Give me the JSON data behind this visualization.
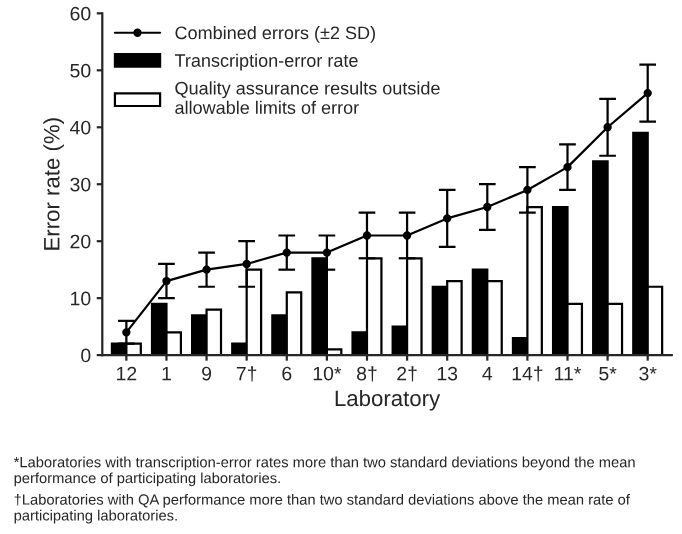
{
  "chart_data": {
    "type": "bar",
    "xlabel": "Laboratory",
    "ylabel": "Error rate (%)",
    "categories": [
      "12",
      "1",
      "9",
      "7†",
      "6",
      "10*",
      "8†",
      "2†",
      "13",
      "4",
      "14†",
      "11*",
      "5*",
      "3*"
    ],
    "series": [
      {
        "name": "Combined errors (±2 SD)",
        "type": "line",
        "color": "#000000",
        "marker": "circle",
        "values": [
          4,
          13,
          15,
          16,
          18,
          18,
          21,
          21,
          24,
          26,
          29,
          33,
          40,
          46
        ],
        "errors": [
          2,
          3,
          3,
          4,
          3,
          3,
          4,
          4,
          5,
          4,
          4,
          4,
          5,
          5
        ]
      },
      {
        "name": "Transcription-error rate",
        "color": "#000000",
        "values": [
          2,
          9,
          7,
          2,
          7,
          17,
          4,
          5,
          12,
          15,
          3,
          26,
          34,
          39
        ]
      },
      {
        "name": "Quality assurance results outside\nallowable limits of error",
        "color": "#ffffff",
        "values": [
          2,
          4,
          8,
          15,
          11,
          1,
          17,
          17,
          13,
          13,
          26,
          9,
          9,
          12
        ]
      }
    ],
    "ylim": [
      0,
      60
    ],
    "yticks": [
      0,
      10,
      20,
      30,
      40,
      50,
      60
    ],
    "grid": false,
    "legend": "top left",
    "annotations": [
      "*Laboratories with transcription-error rates more than two standard deviations beyond the mean performance of participating laboratories.",
      "†Laboratories with QA performance more than two standard deviations above the mean rate of participating laboratories."
    ]
  }
}
